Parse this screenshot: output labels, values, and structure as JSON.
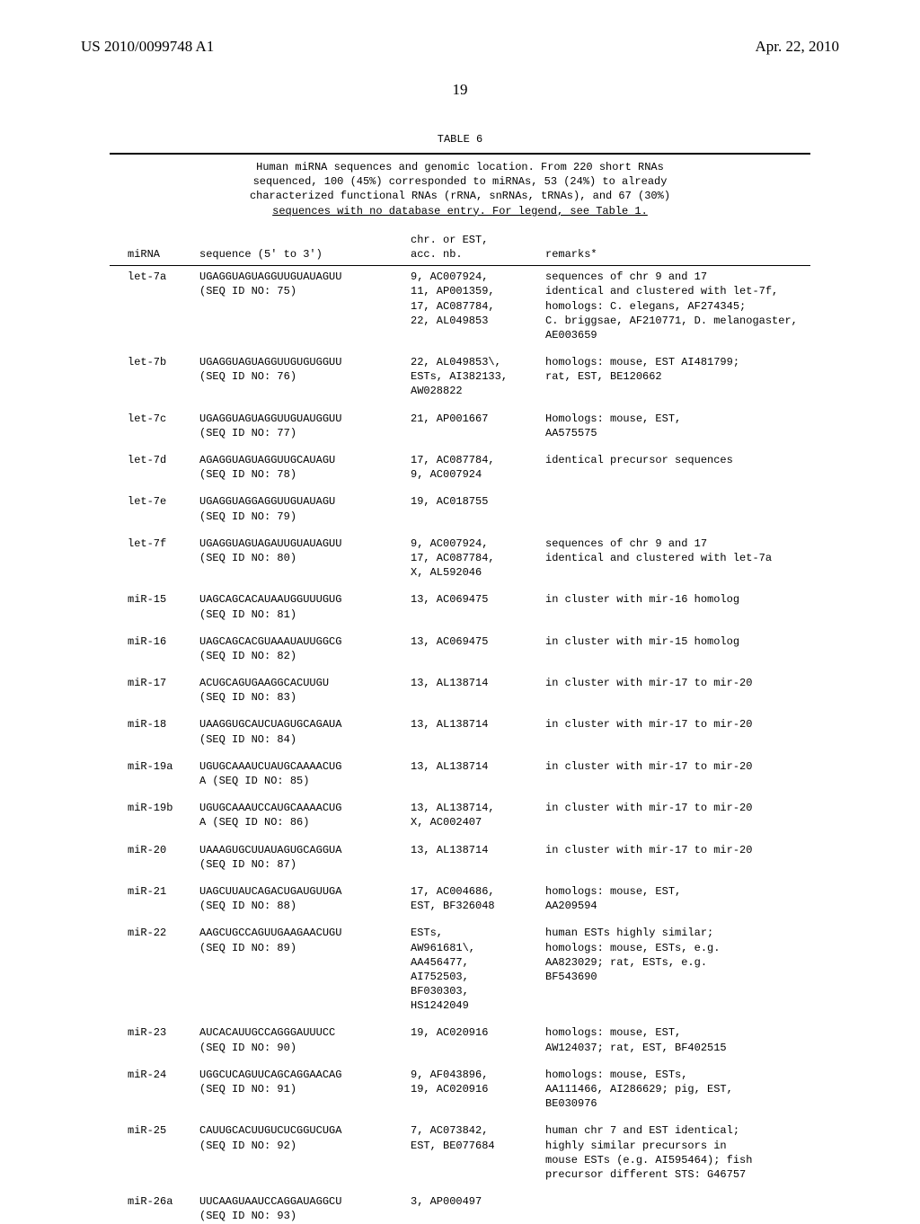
{
  "header": {
    "pub_number": "US 2010/0099748 A1",
    "pub_date": "Apr. 22, 2010",
    "page_number": "19"
  },
  "table": {
    "label": "TABLE 6",
    "caption_lines": [
      "Human miRNA sequences and genomic location. From 220 short RNAs",
      "sequenced, 100 (45%) corresponded to miRNAs, 53 (24%) to already",
      "characterized functional RNAs (rRNA, snRNAs, tRNAs), and 67 (30%)"
    ],
    "caption_last_line": "sequences with no database entry. For legend, see Table 1.",
    "columns": {
      "c1": "miRNA",
      "c2": "sequence (5' to 3')",
      "c3": "chr. or EST,\nacc. nb.",
      "c4": "remarks*"
    },
    "rows": [
      {
        "mirna": "let-7a",
        "seq": "UGAGGUAGUAGGUUGUAUAGUU\n(SEQ ID NO: 75)",
        "acc": "9, AC007924,\n11, AP001359,\n17, AC087784,\n22, AL049853",
        "remarks": "sequences of chr 9 and 17\nidentical and clustered with let-7f,\nhomologs: C. elegans, AF274345;\nC. briggsae, AF210771, D. melanogaster,\nAE003659"
      },
      {
        "mirna": "let-7b",
        "seq": "UGAGGUAGUAGGUUGUGUGGUU\n(SEQ ID NO: 76)",
        "acc": "22, AL049853\\,\nESTs, AI382133,\nAW028822",
        "remarks": "homologs: mouse, EST AI481799;\nrat, EST, BE120662"
      },
      {
        "mirna": "let-7c",
        "seq": "UGAGGUAGUAGGUUGUAUGGUU\n(SEQ ID NO: 77)",
        "acc": "21, AP001667",
        "remarks": "Homologs: mouse, EST,\nAA575575"
      },
      {
        "mirna": "let-7d",
        "seq": "AGAGGUAGUAGGUUGCAUAGU\n(SEQ ID NO: 78)",
        "acc": "17, AC087784,\n9, AC007924",
        "remarks": "identical precursor sequences"
      },
      {
        "mirna": "let-7e",
        "seq": "UGAGGUAGGAGGUUGUAUAGU\n(SEQ ID NO: 79)",
        "acc": "19, AC018755",
        "remarks": ""
      },
      {
        "mirna": "let-7f",
        "seq": "UGAGGUAGUAGAUUGUAUAGUU\n(SEQ ID NO: 80)",
        "acc": "9, AC007924,\n17, AC087784,\nX, AL592046",
        "remarks": "sequences of chr 9 and 17\nidentical and clustered with let-7a"
      },
      {
        "mirna": "miR-15",
        "seq": "UAGCAGCACAUAAUGGUUUGUG\n(SEQ ID NO: 81)",
        "acc": "13, AC069475",
        "remarks": "in cluster with mir-16 homolog"
      },
      {
        "mirna": "miR-16",
        "seq": "UAGCAGCACGUAAAUAUUGGCG\n(SEQ ID NO: 82)",
        "acc": "13, AC069475",
        "remarks": "in cluster with mir-15 homolog"
      },
      {
        "mirna": "miR-17",
        "seq": "ACUGCAGUGAAGGCACUUGU\n(SEQ ID NO: 83)",
        "acc": "13, AL138714",
        "remarks": "in cluster with mir-17 to mir-20"
      },
      {
        "mirna": "miR-18",
        "seq": "UAAGGUGCAUCUAGUGCAGAUA\n(SEQ ID NO: 84)",
        "acc": "13, AL138714",
        "remarks": "in cluster with mir-17 to mir-20"
      },
      {
        "mirna": "miR-19a",
        "seq": "UGUGCAAAUCUAUGCAAAACUG\nA (SEQ ID NO: 85)",
        "acc": "13, AL138714",
        "remarks": "in cluster with mir-17 to mir-20"
      },
      {
        "mirna": "miR-19b",
        "seq": "UGUGCAAAUCCAUGCAAAACUG\nA (SEQ ID NO: 86)",
        "acc": "13, AL138714,\nX, AC002407",
        "remarks": "in cluster with mir-17 to mir-20"
      },
      {
        "mirna": "miR-20",
        "seq": "UAAAGUGCUUAUAGUGCAGGUA\n(SEQ ID NO: 87)",
        "acc": "13, AL138714",
        "remarks": "in cluster with mir-17 to mir-20"
      },
      {
        "mirna": "miR-21",
        "seq": "UAGCUUAUCAGACUGAUGUUGA\n(SEQ ID NO: 88)",
        "acc": "17, AC004686,\nEST, BF326048",
        "remarks": "homologs: mouse, EST,\nAA209594"
      },
      {
        "mirna": "miR-22",
        "seq": "AAGCUGCCAGUUGAAGAACUGU\n(SEQ ID NO: 89)",
        "acc": "ESTs,\nAW961681\\,\nAA456477,\nAI752503,\nBF030303,\nHS1242049",
        "remarks": "human ESTs highly similar;\nhomologs: mouse, ESTs, e.g.\nAA823029; rat, ESTs, e.g.\nBF543690"
      },
      {
        "mirna": "miR-23",
        "seq": "AUCACAUUGCCAGGGAUUUCC\n(SEQ ID NO: 90)",
        "acc": "19, AC020916",
        "remarks": "homologs: mouse, EST,\nAW124037; rat, EST, BF402515"
      },
      {
        "mirna": "miR-24",
        "seq": "UGGCUCAGUUCAGCAGGAACAG\n(SEQ ID NO: 91)",
        "acc": "9, AF043896,\n19, AC020916",
        "remarks": "homologs: mouse, ESTs,\nAA111466, AI286629; pig, EST,\nBE030976"
      },
      {
        "mirna": "miR-25",
        "seq": "CAUUGCACUUGUCUCGGUCUGA\n(SEQ ID NO: 92)",
        "acc": "7, AC073842,\nEST, BE077684",
        "remarks": "human chr 7 and EST identical;\nhighly similar precursors in\nmouse ESTs (e.g. AI595464); fish\nprecursor different STS: G46757"
      },
      {
        "mirna": "miR-26a",
        "seq": "UUCAAGUAAUCCAGGAUAGGCU\n(SEQ ID NO: 93)",
        "acc": "3, AP000497",
        "remarks": ""
      }
    ]
  }
}
